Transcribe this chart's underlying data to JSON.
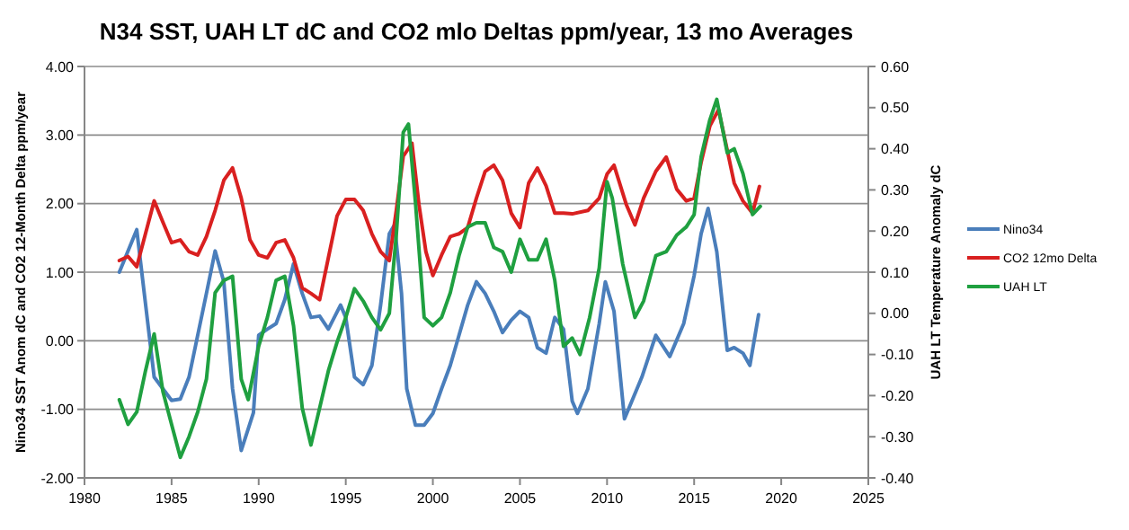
{
  "chart_data": {
    "type": "line",
    "title": "N34 SST, UAH LT dC and CO2 mlo Deltas ppm/year,  13 mo Averages",
    "ylabel": "Nino34 SST Anom dC and CO2 12-Month Delta ppm/year",
    "y2label": "UAH LT Temperature Anomaly dC",
    "xlim": [
      1980,
      2025
    ],
    "xticks": [
      1980,
      1985,
      1990,
      1995,
      2000,
      2005,
      2010,
      2015,
      2020,
      2025
    ],
    "ylim": [
      -2,
      4
    ],
    "yticks": [
      {
        "value": -2,
        "label": "-2.00"
      },
      {
        "value": -1,
        "label": "-1.00"
      },
      {
        "value": 0,
        "label": "0.00"
      },
      {
        "value": 1,
        "label": "1.00"
      },
      {
        "value": 2,
        "label": "2.00"
      },
      {
        "value": 3,
        "label": "3.00"
      },
      {
        "value": 4,
        "label": "4.00"
      }
    ],
    "y2lim": [
      -0.4,
      0.6
    ],
    "y2ticks": [
      {
        "value": -0.4,
        "label": "-0.40"
      },
      {
        "value": -0.3,
        "label": "-0.30"
      },
      {
        "value": -0.2,
        "label": "-0.20"
      },
      {
        "value": -0.1,
        "label": "-0.10"
      },
      {
        "value": 0,
        "label": "0.00"
      },
      {
        "value": 0.1,
        "label": "0.10"
      },
      {
        "value": 0.2,
        "label": "0.20"
      },
      {
        "value": 0.3,
        "label": "0.30"
      },
      {
        "value": 0.4,
        "label": "0.40"
      },
      {
        "value": 0.5,
        "label": "0.50"
      },
      {
        "value": 0.6,
        "label": "0.60"
      }
    ],
    "grid": "y",
    "legend": "right",
    "line_style": "solid",
    "series": [
      {
        "name": "Nino34",
        "color": "#4a7ebb",
        "x": [
          1982,
          1983,
          1984,
          1985,
          1985.5,
          1986,
          1987,
          1987.5,
          1988,
          1988.5,
          1989,
          1989.7,
          1990,
          1990.5,
          1991,
          1991.5,
          1992,
          1992.5,
          1993,
          1993.5,
          1994,
          1994.7,
          1995,
          1995.5,
          1996,
          1996.5,
          1997,
          1997.5,
          1997.8,
          1998.2,
          1998.5,
          1999,
          1999.5,
          2000,
          2000.5,
          2001,
          2001.5,
          2002,
          2002.5,
          2003,
          2003.5,
          2004,
          2004.5,
          2005,
          2005.5,
          2006,
          2006.5,
          2007,
          2007.5,
          2008,
          2008.3,
          2008.9,
          2009.55,
          2009.9,
          2010.4,
          2011,
          2012,
          2012.8,
          2013.6,
          2014.4,
          2015,
          2015.4,
          2015.8,
          2016.3,
          2016.9,
          2017.3,
          2017.8,
          2018.2,
          2018.7
        ],
        "values": [
          1.0,
          1.62,
          -0.53,
          -0.87,
          -0.85,
          -0.53,
          0.69,
          1.31,
          0.86,
          -0.7,
          -1.6,
          -1.05,
          0.08,
          0.17,
          0.25,
          0.6,
          1.12,
          0.69,
          0.34,
          0.36,
          0.17,
          0.52,
          0.34,
          -0.53,
          -0.64,
          -0.36,
          0.52,
          1.56,
          1.69,
          0.69,
          -0.7,
          -1.23,
          -1.23,
          -1.06,
          -0.7,
          -0.36,
          0.08,
          0.52,
          0.86,
          0.69,
          0.43,
          0.12,
          0.3,
          0.43,
          0.34,
          -0.1,
          -0.18,
          0.34,
          0.17,
          -0.88,
          -1.06,
          -0.7,
          0.25,
          0.86,
          0.43,
          -1.14,
          -0.53,
          0.08,
          -0.23,
          0.25,
          0.95,
          1.56,
          1.93,
          1.3,
          -0.14,
          -0.1,
          -0.18,
          -0.36,
          0.38
        ]
      },
      {
        "name": "CO2 12mo Delta",
        "color": "#d92020",
        "x": [
          1982,
          1982.5,
          1983,
          1983.5,
          1984,
          1984.5,
          1985,
          1985.5,
          1986,
          1986.5,
          1987,
          1987.5,
          1988,
          1988.5,
          1989,
          1989.5,
          1990,
          1990.5,
          1991,
          1991.5,
          1992,
          1992.5,
          1993,
          1993.5,
          1994,
          1994.5,
          1995,
          1995.5,
          1996,
          1996.5,
          1997,
          1997.5,
          1997.9,
          1998.3,
          1998.8,
          1999.2,
          1999.6,
          2000,
          2000.5,
          2001,
          2001.5,
          2002,
          2002.5,
          2003,
          2003.5,
          2004,
          2004.5,
          2005,
          2005.5,
          2006,
          2006.5,
          2007,
          2007.5,
          2008,
          2008.9,
          2009.55,
          2010,
          2010.4,
          2011.1,
          2011.6,
          2012.1,
          2012.8,
          2013.4,
          2014,
          2014.55,
          2015,
          2015.4,
          2015.9,
          2016.4,
          2016.9,
          2017.3,
          2017.8,
          2018.35,
          2018.75
        ],
        "values": [
          1.17,
          1.23,
          1.08,
          1.56,
          2.04,
          1.73,
          1.43,
          1.47,
          1.3,
          1.25,
          1.52,
          1.9,
          2.34,
          2.52,
          2.08,
          1.47,
          1.25,
          1.21,
          1.43,
          1.47,
          1.21,
          0.77,
          0.69,
          0.6,
          1.21,
          1.82,
          2.06,
          2.06,
          1.9,
          1.56,
          1.3,
          1.17,
          1.9,
          2.69,
          2.88,
          1.99,
          1.3,
          0.95,
          1.25,
          1.52,
          1.56,
          1.65,
          2.08,
          2.47,
          2.56,
          2.34,
          1.86,
          1.65,
          2.3,
          2.52,
          2.26,
          1.86,
          1.86,
          1.85,
          1.9,
          2.08,
          2.43,
          2.56,
          1.99,
          1.69,
          2.08,
          2.47,
          2.68,
          2.21,
          2.04,
          2.08,
          2.6,
          3.13,
          3.37,
          2.78,
          2.3,
          2.04,
          1.86,
          2.25
        ]
      },
      {
        "name": "UAH LT",
        "color": "#1fa040",
        "axis": "y2",
        "x": [
          1982,
          1982.5,
          1983,
          1983.5,
          1984,
          1984.5,
          1985,
          1985.5,
          1986,
          1986.5,
          1987,
          1987.5,
          1988,
          1988.5,
          1989,
          1989.4,
          1990,
          1990.5,
          1991,
          1991.5,
          1992,
          1992.5,
          1993,
          1993.5,
          1994,
          1994.5,
          1995,
          1995.5,
          1996,
          1996.5,
          1997,
          1997.5,
          1997.9,
          1998.3,
          1998.6,
          1999,
          1999.5,
          2000,
          2000.5,
          2001,
          2001.5,
          2002,
          2002.5,
          2003,
          2003.5,
          2004,
          2004.5,
          2005,
          2005.5,
          2006,
          2006.5,
          2007,
          2007.5,
          2008,
          2008.45,
          2009,
          2009.55,
          2010,
          2010.3,
          2010.9,
          2011.6,
          2012.1,
          2012.8,
          2013.4,
          2014,
          2014.55,
          2015,
          2015.4,
          2015.9,
          2016.3,
          2016.9,
          2017.3,
          2017.8,
          2018.35,
          2018.8
        ],
        "values": [
          -0.21,
          -0.27,
          -0.24,
          -0.14,
          -0.05,
          -0.19,
          -0.27,
          -0.35,
          -0.3,
          -0.24,
          -0.16,
          0.05,
          0.08,
          0.09,
          -0.16,
          -0.21,
          -0.08,
          -0.01,
          0.08,
          0.09,
          -0.03,
          -0.23,
          -0.32,
          -0.23,
          -0.14,
          -0.07,
          -0.01,
          0.06,
          0.03,
          -0.01,
          -0.04,
          0.0,
          0.19,
          0.44,
          0.46,
          0.27,
          -0.01,
          -0.03,
          -0.01,
          0.05,
          0.14,
          0.21,
          0.22,
          0.22,
          0.16,
          0.15,
          0.1,
          0.18,
          0.13,
          0.13,
          0.18,
          0.08,
          -0.08,
          -0.06,
          -0.1,
          -0.01,
          0.11,
          0.32,
          0.28,
          0.12,
          -0.01,
          0.03,
          0.14,
          0.15,
          0.19,
          0.21,
          0.24,
          0.38,
          0.47,
          0.52,
          0.39,
          0.4,
          0.34,
          0.24,
          0.26
        ]
      }
    ]
  }
}
